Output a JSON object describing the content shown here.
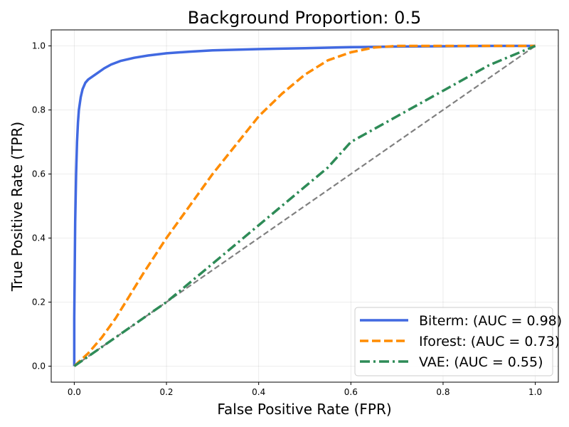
{
  "chart_data": {
    "type": "line",
    "title": "Background Proportion: 0.5",
    "xlabel": "False Positive Rate (FPR)",
    "ylabel": "True Positive Rate (TPR)",
    "xlim": [
      -0.05,
      1.05
    ],
    "ylim": [
      -0.05,
      1.05
    ],
    "x_ticks": [
      0.0,
      0.2,
      0.4,
      0.6,
      0.8,
      1.0
    ],
    "y_ticks": [
      0.0,
      0.2,
      0.4,
      0.6,
      0.8,
      1.0
    ],
    "x_tick_labels": [
      "0.0",
      "0.2",
      "0.4",
      "0.6",
      "0.8",
      "1.0"
    ],
    "y_tick_labels": [
      "0.0",
      "0.2",
      "0.4",
      "0.6",
      "0.8",
      "1.0"
    ],
    "grid": true,
    "legend_position": "lower-right",
    "series": [
      {
        "name": "Biterm",
        "label": "Biterm: (AUC = 0.98)",
        "auc": 0.98,
        "color": "#4169e1",
        "style": "solid",
        "x": [
          0.0,
          0.0,
          0.002,
          0.004,
          0.006,
          0.008,
          0.01,
          0.014,
          0.018,
          0.024,
          0.03,
          0.04,
          0.05,
          0.065,
          0.08,
          0.1,
          0.13,
          0.16,
          0.2,
          0.25,
          0.3,
          0.4,
          0.5,
          0.6,
          0.7,
          0.8,
          0.9,
          1.0
        ],
        "y": [
          0.0,
          0.15,
          0.45,
          0.6,
          0.7,
          0.76,
          0.8,
          0.84,
          0.865,
          0.885,
          0.895,
          0.905,
          0.915,
          0.93,
          0.942,
          0.953,
          0.963,
          0.97,
          0.977,
          0.982,
          0.986,
          0.99,
          0.993,
          0.996,
          0.998,
          0.999,
          1.0,
          1.0
        ]
      },
      {
        "name": "Iforest",
        "label": "Iforest: (AUC = 0.73)",
        "auc": 0.73,
        "color": "#ff8c00",
        "style": "dashed",
        "x": [
          0.0,
          0.03,
          0.06,
          0.09,
          0.12,
          0.15,
          0.2,
          0.25,
          0.3,
          0.35,
          0.4,
          0.45,
          0.5,
          0.55,
          0.6,
          0.65,
          0.7,
          0.8,
          0.9,
          1.0
        ],
        "y": [
          0.0,
          0.04,
          0.09,
          0.15,
          0.22,
          0.29,
          0.4,
          0.5,
          0.6,
          0.69,
          0.78,
          0.85,
          0.91,
          0.955,
          0.98,
          0.995,
          1.0,
          1.0,
          1.0,
          1.0
        ]
      },
      {
        "name": "VAE",
        "label": "VAE: (AUC = 0.55)",
        "auc": 0.55,
        "color": "#2e8b57",
        "style": "dashdot",
        "x": [
          0.0,
          0.05,
          0.1,
          0.15,
          0.2,
          0.25,
          0.3,
          0.35,
          0.4,
          0.45,
          0.5,
          0.55,
          0.6,
          0.65,
          0.7,
          0.75,
          0.8,
          0.85,
          0.9,
          0.95,
          1.0
        ],
        "y": [
          0.0,
          0.05,
          0.1,
          0.15,
          0.2,
          0.26,
          0.32,
          0.38,
          0.44,
          0.5,
          0.56,
          0.62,
          0.7,
          0.74,
          0.78,
          0.82,
          0.86,
          0.9,
          0.94,
          0.97,
          1.0
        ]
      }
    ],
    "reference_line": {
      "x": [
        0.0,
        1.0
      ],
      "y": [
        0.0,
        1.0
      ],
      "color": "#808080",
      "style": "dashed"
    }
  }
}
